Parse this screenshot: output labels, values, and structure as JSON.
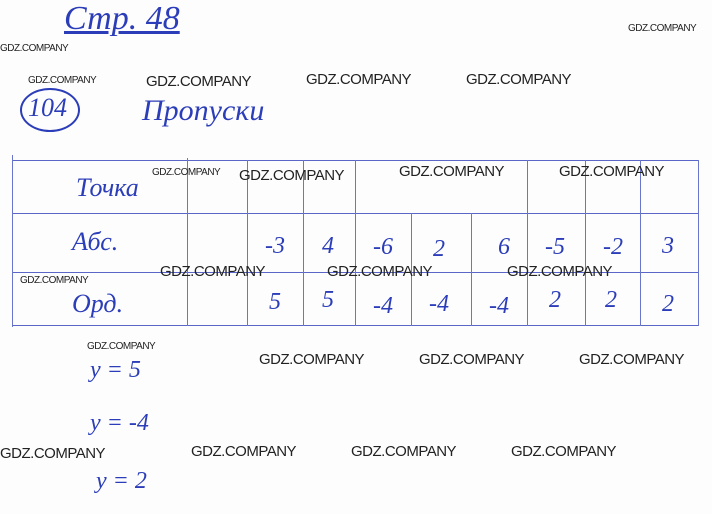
{
  "header": {
    "page_ref": "Стр. 48",
    "task_number": "104",
    "task_title": "Пропуски"
  },
  "table": {
    "row_labels": [
      "Точка",
      "Абс.",
      "Орд."
    ],
    "abscissa": [
      "-3",
      "4",
      "-6",
      "2",
      "6",
      "-5",
      "-2",
      "3"
    ],
    "ordinate": [
      "5",
      "5",
      "-4",
      "-4",
      "-4",
      "2",
      "2",
      "2"
    ]
  },
  "answers": [
    "y = 5",
    "y = -4",
    "y = 2"
  ],
  "watermark": "GDZ.COMPANY",
  "colors": {
    "ink": "#2b3db8"
  }
}
